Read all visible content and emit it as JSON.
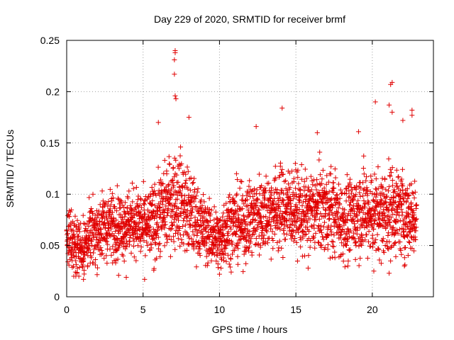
{
  "chart_data": {
    "type": "scatter",
    "title": "Day 229 of 2020, SRMTID for receiver brmf",
    "xlabel": "GPS time / hours",
    "ylabel": "SRMTID / TECUs",
    "xlim": [
      0,
      24
    ],
    "ylim": [
      0,
      0.25
    ],
    "x_ticks": [
      0,
      5,
      10,
      15,
      20
    ],
    "x_tick_labels": [
      "0",
      "5",
      "10",
      "15",
      "20"
    ],
    "y_ticks": [
      0,
      0.05,
      0.1,
      0.15,
      0.2,
      0.25
    ],
    "y_tick_labels": [
      "0",
      "0.05",
      "0.1",
      "0.15",
      "0.2",
      "0.25"
    ],
    "grid": true,
    "marker": "+",
    "color": "#e00000",
    "x_step_hours": 0.0083,
    "profile": {
      "x": [
        0,
        0.5,
        1,
        1.5,
        2,
        2.5,
        3,
        3.5,
        4,
        4.5,
        5,
        5.5,
        6,
        6.5,
        7,
        7.5,
        8,
        8.5,
        9,
        9.5,
        10,
        10.5,
        11,
        11.5,
        12,
        12.5,
        13,
        13.5,
        14,
        14.5,
        15,
        15.5,
        16,
        16.5,
        17,
        17.5,
        18,
        18.5,
        19,
        19.5,
        20,
        20.5,
        21,
        21.5,
        22,
        22.5,
        22.9
      ],
      "median": [
        0.058,
        0.052,
        0.048,
        0.058,
        0.064,
        0.069,
        0.071,
        0.07,
        0.072,
        0.074,
        0.068,
        0.07,
        0.079,
        0.087,
        0.096,
        0.094,
        0.082,
        0.074,
        0.066,
        0.06,
        0.055,
        0.07,
        0.072,
        0.07,
        0.076,
        0.079,
        0.083,
        0.085,
        0.085,
        0.087,
        0.085,
        0.08,
        0.083,
        0.086,
        0.084,
        0.082,
        0.073,
        0.075,
        0.082,
        0.084,
        0.082,
        0.08,
        0.083,
        0.085,
        0.082,
        0.078,
        0.075
      ],
      "spread": [
        0.016,
        0.016,
        0.016,
        0.017,
        0.018,
        0.019,
        0.019,
        0.018,
        0.018,
        0.019,
        0.019,
        0.02,
        0.022,
        0.024,
        0.026,
        0.026,
        0.024,
        0.02,
        0.018,
        0.017,
        0.017,
        0.02,
        0.021,
        0.02,
        0.021,
        0.022,
        0.022,
        0.023,
        0.024,
        0.023,
        0.022,
        0.022,
        0.023,
        0.024,
        0.024,
        0.023,
        0.022,
        0.022,
        0.024,
        0.025,
        0.024,
        0.024,
        0.025,
        0.025,
        0.024,
        0.022,
        0.02
      ]
    },
    "peaks": [
      {
        "x": 7.1,
        "y": 0.24
      },
      {
        "x": 7.1,
        "y": 0.238
      },
      {
        "x": 7.05,
        "y": 0.231
      },
      {
        "x": 7.05,
        "y": 0.217
      },
      {
        "x": 7.1,
        "y": 0.196
      },
      {
        "x": 7.15,
        "y": 0.193
      },
      {
        "x": 14.1,
        "y": 0.184
      },
      {
        "x": 21.3,
        "y": 0.209
      },
      {
        "x": 21.2,
        "y": 0.207
      },
      {
        "x": 20.2,
        "y": 0.19
      },
      {
        "x": 21.1,
        "y": 0.187
      },
      {
        "x": 21.3,
        "y": 0.18
      },
      {
        "x": 22.6,
        "y": 0.182
      },
      {
        "x": 22.6,
        "y": 0.177
      },
      {
        "x": 12.4,
        "y": 0.166
      },
      {
        "x": 6.0,
        "y": 0.17
      },
      {
        "x": 8.0,
        "y": 0.175
      },
      {
        "x": 16.4,
        "y": 0.16
      },
      {
        "x": 19.1,
        "y": 0.161
      },
      {
        "x": 22.0,
        "y": 0.172
      }
    ],
    "lows": [
      {
        "x": 1.1,
        "y": 0.017
      },
      {
        "x": 5.1,
        "y": 0.017
      },
      {
        "x": 3.4,
        "y": 0.021
      },
      {
        "x": 10.0,
        "y": 0.022
      },
      {
        "x": 10.1,
        "y": 0.028
      },
      {
        "x": 9.9,
        "y": 0.032
      },
      {
        "x": 0.7,
        "y": 0.028
      },
      {
        "x": 15.8,
        "y": 0.028
      },
      {
        "x": 18.4,
        "y": 0.03
      },
      {
        "x": 20.1,
        "y": 0.025
      },
      {
        "x": 21.1,
        "y": 0.023
      },
      {
        "x": 22.1,
        "y": 0.03
      },
      {
        "x": 5.7,
        "y": 0.026
      },
      {
        "x": 3.9,
        "y": 0.019
      }
    ]
  }
}
